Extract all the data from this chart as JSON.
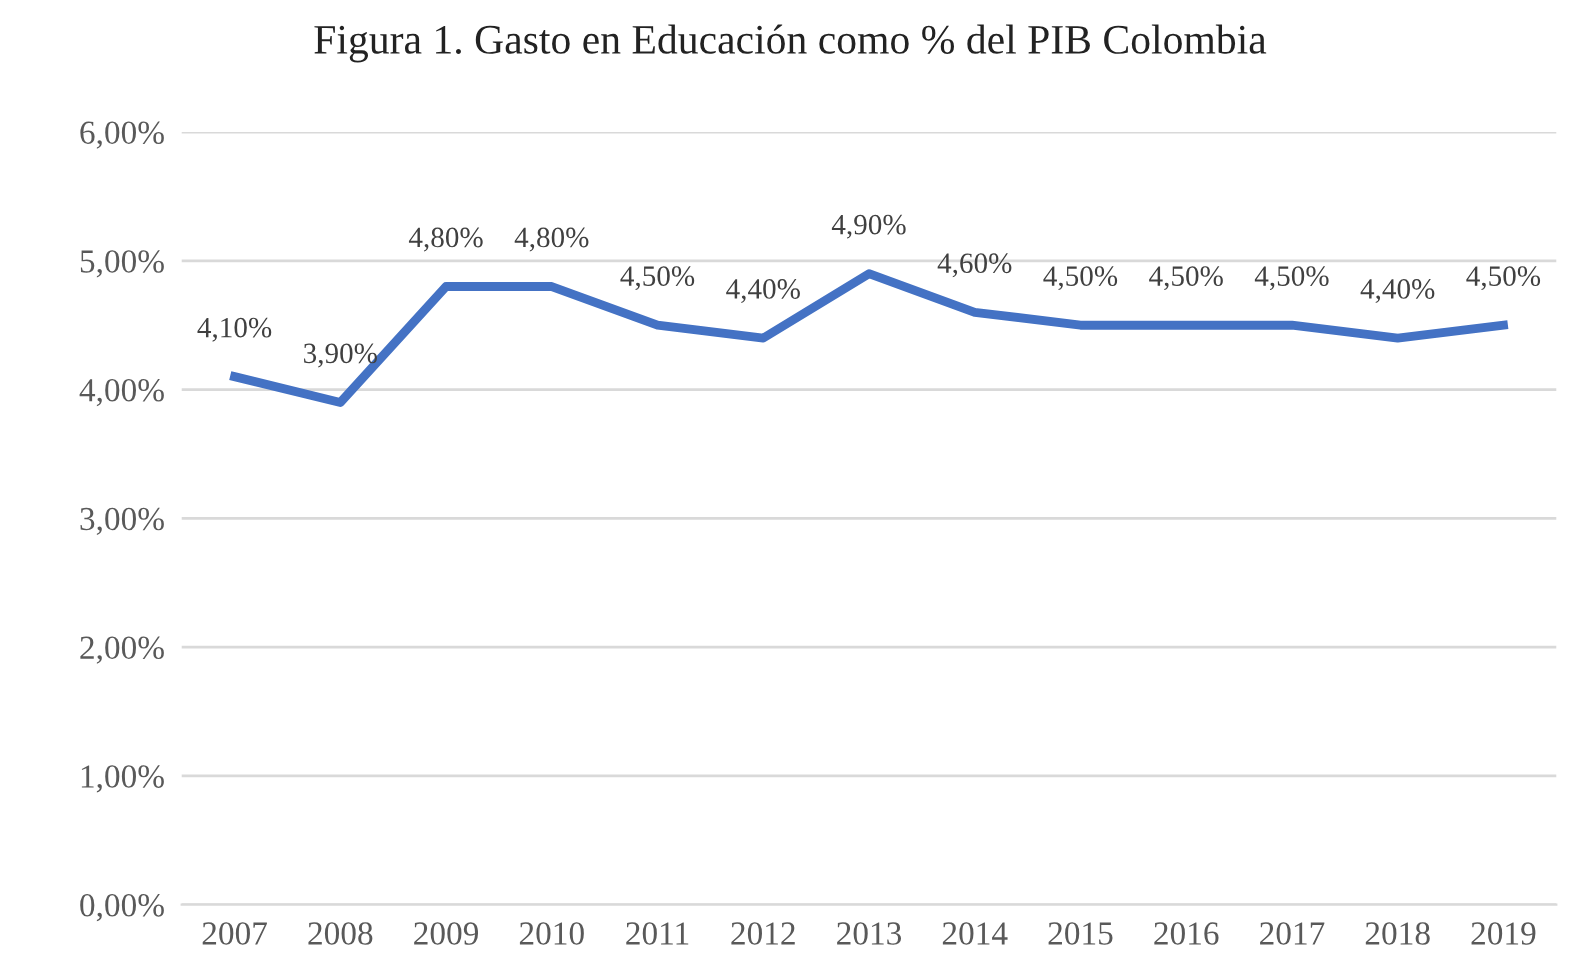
{
  "chart_data": {
    "type": "line",
    "title": "Figura 1. Gasto en Educación como % del PIB Colombia",
    "categories": [
      "2007",
      "2008",
      "2009",
      "2010",
      "2011",
      "2012",
      "2013",
      "2014",
      "2015",
      "2016",
      "2017",
      "2018",
      "2019"
    ],
    "series": [
      {
        "color": "#4472c4",
        "values": [
          4.1,
          3.9,
          4.8,
          4.8,
          4.5,
          4.4,
          4.9,
          4.6,
          4.5,
          4.5,
          4.5,
          4.4,
          4.5
        ],
        "value_labels": [
          "4,10%",
          "3,90%",
          "4,80%",
          "4,80%",
          "4,50%",
          "4,40%",
          "4,90%",
          "4,60%",
          "4,50%",
          "4,50%",
          "4,50%",
          "4,40%",
          "4,50%"
        ]
      }
    ],
    "ylim": [
      0,
      6
    ],
    "yticks": [
      {
        "value": 0,
        "label": "0,00%"
      },
      {
        "value": 1,
        "label": "1,00%"
      },
      {
        "value": 2,
        "label": "2,00%"
      },
      {
        "value": 3,
        "label": "3,00%"
      },
      {
        "value": 4,
        "label": "4,00%"
      },
      {
        "value": 5,
        "label": "5,00%"
      },
      {
        "value": 6,
        "label": "6,00%"
      }
    ],
    "grid": "y",
    "marker": "none",
    "line_style": "solid"
  }
}
